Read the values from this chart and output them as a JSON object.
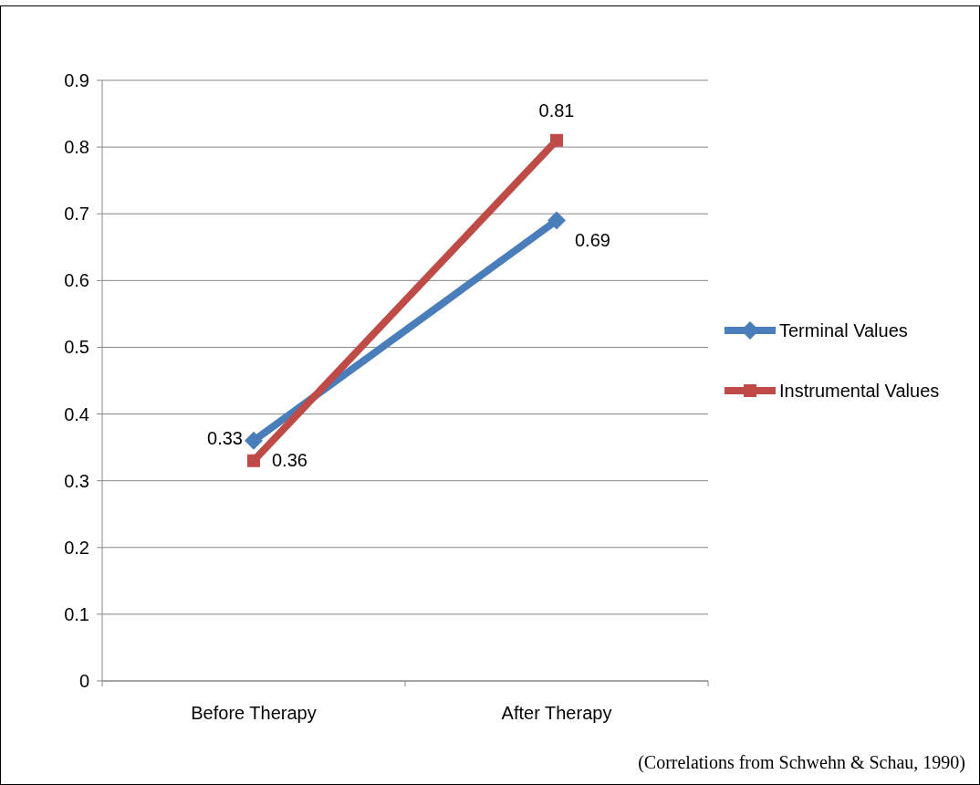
{
  "chart_data": {
    "type": "line",
    "categories": [
      "Before Therapy",
      "After Therapy"
    ],
    "series": [
      {
        "name": "Terminal Values",
        "color": "#4a7ebb",
        "values": [
          0.36,
          0.69
        ],
        "marker": "diamond"
      },
      {
        "name": "Instrumental Values",
        "color": "#be4b48",
        "values": [
          0.33,
          0.81
        ],
        "marker": "square"
      }
    ],
    "ylim": [
      0,
      0.9
    ],
    "yticks": [
      0,
      0.1,
      0.2,
      0.3,
      0.4,
      0.5,
      0.6,
      0.7,
      0.8,
      0.9
    ],
    "grid": "y",
    "legend": "right",
    "data_labels": true,
    "annotations": [
      "(Correlations from Schwehn & Schau, 1990)"
    ]
  }
}
